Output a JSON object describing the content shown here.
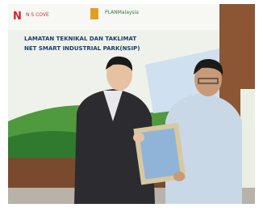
{
  "banner": {
    "logo_text": "N S COVE",
    "partner_logo": "PLANMalaysia",
    "line1": "LAMATAN TEKNIKAL DAN TAKLIMAT",
    "line2": "NET SMART INDUSTRIAL PARK(NSIP)"
  }
}
